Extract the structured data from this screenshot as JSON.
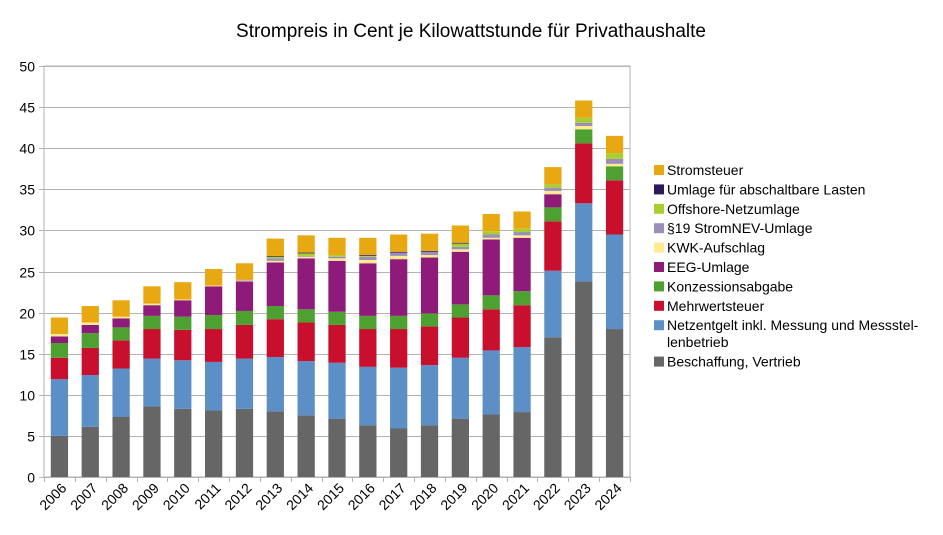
{
  "chart_data": {
    "type": "bar",
    "stacked": true,
    "title": "Strompreis in Cent je Kilowattstunde für Privathaushalte",
    "xlabel": "",
    "ylabel": "",
    "ylim": [
      0,
      50
    ],
    "yticks": [
      0,
      5,
      10,
      15,
      20,
      25,
      30,
      35,
      40,
      45,
      50
    ],
    "grid": true,
    "legend_position": "right",
    "categories": [
      "2006",
      "2007",
      "2008",
      "2009",
      "2010",
      "2011",
      "2012",
      "2013",
      "2014",
      "2015",
      "2016",
      "2017",
      "2018",
      "2019",
      "2020",
      "2021",
      "2022",
      "2023",
      "2024"
    ],
    "series": [
      {
        "name": "Beschaffung, Vertrieb",
        "color": "#666666",
        "values": [
          5.0,
          6.1,
          7.3,
          8.6,
          8.3,
          8.1,
          8.3,
          8.0,
          7.5,
          7.1,
          6.3,
          5.9,
          6.3,
          7.1,
          7.6,
          7.9,
          17.0,
          23.8,
          18.0
        ]
      },
      {
        "name": "Netzentgelt inkl. Messung und Messstellenbetrieb",
        "color": "#5b8fc5",
        "values": [
          6.9,
          6.3,
          5.9,
          5.8,
          5.9,
          5.9,
          6.1,
          6.6,
          6.6,
          6.8,
          7.1,
          7.4,
          7.3,
          7.4,
          7.8,
          7.9,
          8.1,
          9.5,
          11.5
        ]
      },
      {
        "name": "Mehrwertsteuer",
        "color": "#c8102e",
        "values": [
          2.6,
          3.3,
          3.4,
          3.6,
          3.7,
          4.0,
          4.1,
          4.6,
          4.7,
          4.6,
          4.6,
          4.7,
          4.7,
          4.9,
          5.0,
          5.1,
          6.0,
          7.3,
          6.6
        ]
      },
      {
        "name": "Konzessionsabgabe",
        "color": "#4ea030",
        "values": [
          1.8,
          1.8,
          1.6,
          1.6,
          1.6,
          1.7,
          1.7,
          1.6,
          1.6,
          1.6,
          1.6,
          1.6,
          1.6,
          1.6,
          1.7,
          1.7,
          1.7,
          1.7,
          1.7
        ]
      },
      {
        "name": "EEG-Umlage",
        "color": "#8e1a7a",
        "values": [
          0.8,
          1.0,
          1.1,
          1.3,
          2.0,
          3.5,
          3.6,
          5.3,
          6.2,
          6.2,
          6.4,
          6.9,
          6.8,
          6.4,
          6.8,
          6.5,
          1.6,
          0,
          0
        ]
      },
      {
        "name": "KWK-Aufschlag",
        "color": "#ffea90",
        "values": [
          0.3,
          0.3,
          0.2,
          0.2,
          0.1,
          0.1,
          0.1,
          0.2,
          0.2,
          0.3,
          0.4,
          0.4,
          0.3,
          0.3,
          0.2,
          0.3,
          0.4,
          0.4,
          0.3
        ]
      },
      {
        "name": "§19 StromNEV-Umlage",
        "color": "#9a8fbb",
        "values": [
          0,
          0,
          0,
          0,
          0,
          0,
          0.1,
          0.3,
          0.1,
          0.2,
          0.4,
          0.4,
          0.4,
          0.3,
          0.4,
          0.4,
          0.4,
          0.4,
          0.6
        ]
      },
      {
        "name": "Offshore-Netzumlage",
        "color": "#a8cf2e",
        "values": [
          0,
          0,
          0,
          0,
          0,
          0,
          0,
          0.2,
          0.3,
          0.2,
          0.1,
          0,
          0,
          0.4,
          0.4,
          0.4,
          0.4,
          0.6,
          0.7
        ]
      },
      {
        "name": "Umlage für abschaltbare Lasten",
        "color": "#2d1a5e",
        "values": [
          0,
          0,
          0,
          0,
          0,
          0,
          0,
          0.1,
          0.1,
          0,
          0.1,
          0.1,
          0.1,
          0.1,
          0,
          0,
          0,
          0,
          0
        ]
      },
      {
        "name": "Stromsteuer",
        "color": "#e8a811",
        "values": [
          2.0,
          2.0,
          2.0,
          2.1,
          2.1,
          2.0,
          2.0,
          2.1,
          2.1,
          2.1,
          2.1,
          2.1,
          2.1,
          2.1,
          2.1,
          2.1,
          2.1,
          2.1,
          2.1
        ]
      }
    ],
    "legend_order": [
      "Stromsteuer",
      "Umlage für abschaltbare Lasten",
      "Offshore-Netzumlage",
      "§19 StromNEV-Umlage",
      "KWK-Aufschlag",
      "EEG-Umlage",
      "Konzessionsabgabe",
      "Mehrwertsteuer",
      "Netzentgelt inkl. Messung und Messstellenbetrieb",
      "Beschaffung, Vertrieb"
    ],
    "legend_display": {
      "Netzentgelt inkl. Messung und Messstellenbetrieb": [
        "Netzentgelt inkl. Messung und Messstel-",
        "lenbetrieb"
      ]
    }
  }
}
